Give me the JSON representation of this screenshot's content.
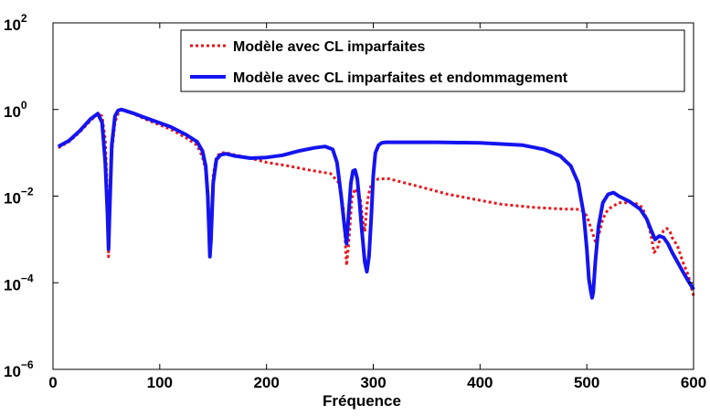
{
  "chart_data": {
    "type": "line",
    "title": "",
    "xlabel": "Fréquence",
    "ylabel": "",
    "xlim": [
      0,
      600
    ],
    "ylim_log10": [
      -6,
      2
    ],
    "yscale": "log",
    "grid": false,
    "legend_placement": "top-right",
    "x_ticks": [
      "0",
      "100",
      "200",
      "300",
      "400",
      "500",
      "600"
    ],
    "y_ticks": [
      {
        "base": "10",
        "exp": "−6"
      },
      {
        "base": "10",
        "exp": "−4"
      },
      {
        "base": "10",
        "exp": "−2"
      },
      {
        "base": "10",
        "exp": "0"
      },
      {
        "base": "10",
        "exp": "2"
      }
    ],
    "series": [
      {
        "name": "Modèle avec CL imparfaites",
        "color": "#e8151b",
        "style": "dotted",
        "x": [
          5,
          15,
          25,
          35,
          42,
          46,
          49,
          51,
          52,
          53,
          55,
          58,
          61,
          64,
          67,
          75,
          90,
          110,
          125,
          135,
          140,
          143,
          145,
          146,
          147,
          148,
          150,
          153,
          157,
          162,
          170,
          185,
          200,
          220,
          240,
          260,
          268,
          272,
          275,
          277,
          280,
          283,
          285,
          288,
          290,
          292,
          294,
          296,
          298,
          300,
          305,
          315,
          330,
          350,
          370,
          400,
          420,
          450,
          480,
          490,
          495,
          500,
          505,
          508,
          512,
          515,
          520,
          530,
          545,
          552,
          556,
          560,
          563,
          566,
          568,
          570,
          572,
          575,
          578,
          580,
          585,
          590,
          595,
          600
        ],
        "y": [
          0.13,
          0.18,
          0.3,
          0.55,
          0.8,
          0.7,
          0.2,
          0.01,
          0.0004,
          0.003,
          0.1,
          0.5,
          0.8,
          0.98,
          0.93,
          0.8,
          0.55,
          0.35,
          0.22,
          0.15,
          0.08,
          0.04,
          0.01,
          0.003,
          0.0008,
          0.002,
          0.03,
          0.08,
          0.1,
          0.1,
          0.09,
          0.075,
          0.06,
          0.05,
          0.04,
          0.033,
          0.02,
          0.005,
          0.00025,
          0.0008,
          0.009,
          0.015,
          0.012,
          0.008,
          0.003,
          0.0015,
          0.006,
          0.012,
          0.018,
          0.022,
          0.025,
          0.025,
          0.02,
          0.015,
          0.011,
          0.008,
          0.0065,
          0.0055,
          0.005,
          0.005,
          0.0048,
          0.0035,
          0.0015,
          0.0009,
          0.0015,
          0.003,
          0.005,
          0.007,
          0.007,
          0.0055,
          0.003,
          0.0013,
          0.0005,
          0.0006,
          0.0009,
          0.0013,
          0.0016,
          0.0018,
          0.0015,
          0.0011,
          0.0007,
          0.0003,
          0.00015,
          5e-05
        ]
      },
      {
        "name": "Modèle avec CL imparfaites et endommagement",
        "color": "#1414f0",
        "style": "solid",
        "x": [
          5,
          15,
          25,
          35,
          42,
          46,
          49,
          51,
          52,
          53,
          55,
          58,
          61,
          64,
          67,
          75,
          90,
          110,
          125,
          135,
          140,
          143,
          145,
          146,
          147,
          148,
          150,
          153,
          157,
          162,
          170,
          185,
          200,
          215,
          230,
          245,
          255,
          262,
          266,
          270,
          273,
          275,
          277,
          279,
          281,
          283,
          285,
          287,
          289,
          292,
          294,
          296,
          298,
          300,
          302,
          305,
          308,
          312,
          320,
          340,
          360,
          380,
          400,
          420,
          440,
          460,
          475,
          485,
          492,
          497,
          500,
          502,
          504,
          505,
          506,
          508,
          511,
          515,
          520,
          525,
          530,
          540,
          550,
          556,
          560,
          564,
          568,
          572,
          576,
          580,
          585,
          590,
          595,
          600
        ],
        "y": [
          0.14,
          0.19,
          0.32,
          0.6,
          0.8,
          0.5,
          0.06,
          0.004,
          0.0006,
          0.004,
          0.15,
          0.7,
          0.95,
          1.0,
          0.95,
          0.82,
          0.6,
          0.4,
          0.26,
          0.18,
          0.11,
          0.05,
          0.01,
          0.002,
          0.0004,
          0.001,
          0.02,
          0.07,
          0.09,
          0.095,
          0.085,
          0.075,
          0.078,
          0.088,
          0.11,
          0.13,
          0.14,
          0.12,
          0.06,
          0.01,
          0.002,
          0.0008,
          0.004,
          0.02,
          0.038,
          0.04,
          0.025,
          0.008,
          0.002,
          0.0003,
          0.00018,
          0.0004,
          0.003,
          0.03,
          0.1,
          0.15,
          0.17,
          0.175,
          0.175,
          0.175,
          0.175,
          0.172,
          0.17,
          0.16,
          0.15,
          0.12,
          0.085,
          0.05,
          0.02,
          0.004,
          0.0006,
          0.00012,
          6e-05,
          4.5e-05,
          6e-05,
          0.0003,
          0.002,
          0.007,
          0.011,
          0.012,
          0.01,
          0.0075,
          0.005,
          0.003,
          0.0017,
          0.001,
          0.0012,
          0.0011,
          0.0008,
          0.0005,
          0.0003,
          0.00018,
          0.00011,
          7e-05
        ]
      }
    ]
  }
}
